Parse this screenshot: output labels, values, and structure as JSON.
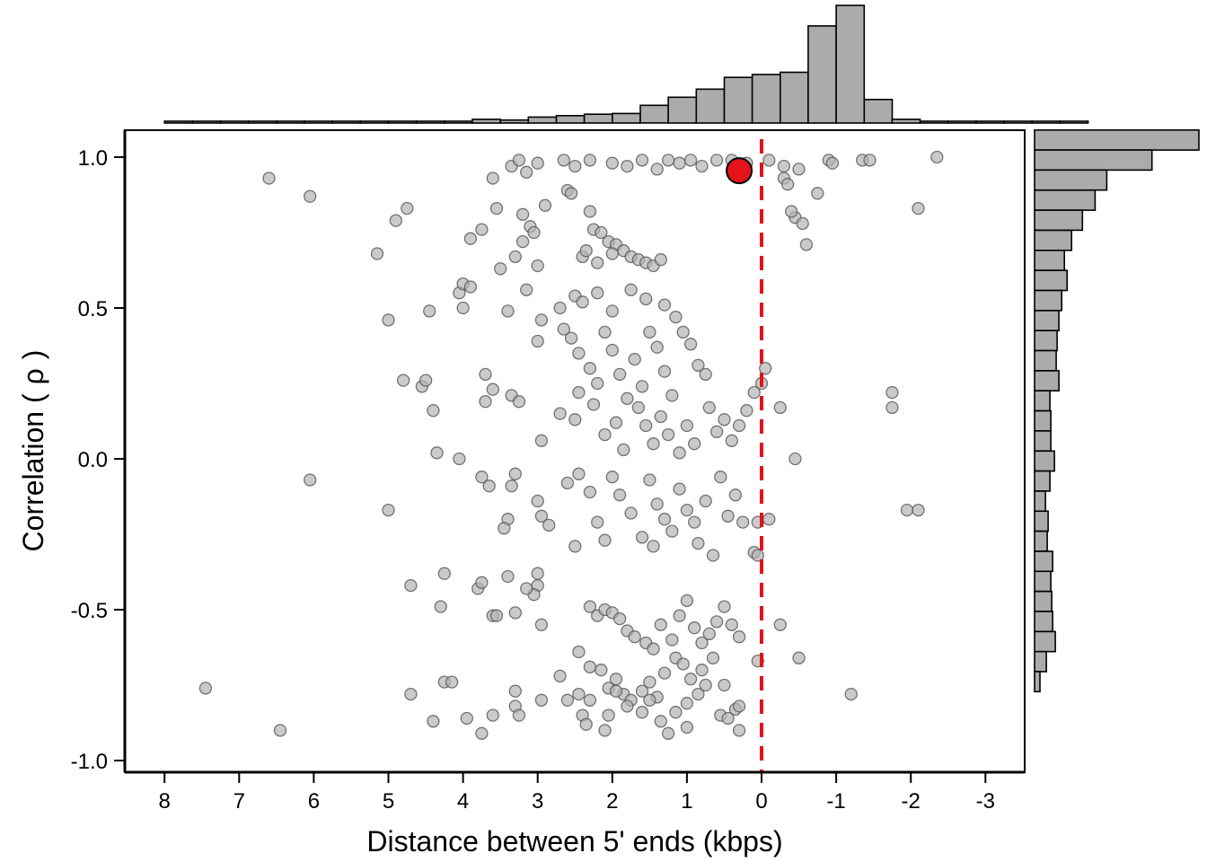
{
  "chart_data": {
    "type": "scatter",
    "title": "",
    "xlabel": "Distance between 5' ends (kbps)",
    "ylabel_text": "Correlation (",
    "ylabel_symbol": "ρ",
    "ylabel_close": ")",
    "x_reversed": true,
    "xlim": [
      8.5,
      -3.5
    ],
    "ylim": [
      -1.04,
      1.09
    ],
    "xticks": [
      8,
      7,
      6,
      5,
      4,
      3,
      2,
      1,
      0,
      -1,
      -2,
      -3
    ],
    "xtick_labels": [
      "8",
      "7",
      "6",
      "5",
      "4",
      "3",
      "2",
      "1",
      "0",
      "-1",
      "-2",
      "-3"
    ],
    "yticks": [
      1.0,
      0.5,
      0.0,
      -0.5,
      -1.0
    ],
    "ytick_labels": [
      "1.0",
      "0.5",
      "0.0",
      "-0.5",
      "-1.0"
    ],
    "grid": false,
    "reference_line": {
      "x": 0,
      "style": "dashed",
      "color": "#e3121b"
    },
    "highlight_point": {
      "x": 0.3,
      "y": 0.955,
      "color": "#e3121b"
    },
    "point_color": "#b3b3b3",
    "bar_color": "#ababab",
    "marginal_x": {
      "bin_width_kbps": 0.375,
      "bin_start": 8.0,
      "counts": [
        1,
        1,
        1,
        1,
        1,
        1,
        1,
        1,
        1,
        2,
        2,
        5,
        4,
        8,
        10,
        12,
        13,
        24,
        35,
        46,
        62,
        66,
        69,
        132,
        160,
        32,
        5,
        2,
        2,
        2,
        1,
        1,
        1
      ]
    },
    "marginal_y": {
      "bin_width": 0.0665,
      "bin_start": 1.09,
      "counts": [
        182,
        130,
        80,
        67,
        53,
        41,
        33,
        36,
        30,
        27,
        25,
        24,
        27,
        17,
        18,
        18,
        22,
        17,
        12,
        15,
        14,
        20,
        18,
        19,
        20,
        23,
        13,
        6
      ]
    },
    "points": [
      [
        6.6,
        0.93
      ],
      [
        6.05,
        0.87
      ],
      [
        5.15,
        0.68
      ],
      [
        4.9,
        0.79
      ],
      [
        4.75,
        0.83
      ],
      [
        3.6,
        0.93
      ],
      [
        3.35,
        0.97
      ],
      [
        3.25,
        0.99
      ],
      [
        3.55,
        0.83
      ],
      [
        3.2,
        0.81
      ],
      [
        3.15,
        0.95
      ],
      [
        3.0,
        0.98
      ],
      [
        2.65,
        0.99
      ],
      [
        2.5,
        0.97
      ],
      [
        2.3,
        0.99
      ],
      [
        2.0,
        0.98
      ],
      [
        1.8,
        0.97
      ],
      [
        1.6,
        0.99
      ],
      [
        1.4,
        0.96
      ],
      [
        1.25,
        0.99
      ],
      [
        1.1,
        0.98
      ],
      [
        0.95,
        0.99
      ],
      [
        0.8,
        0.97
      ],
      [
        0.6,
        0.99
      ],
      [
        0.4,
        0.99
      ],
      [
        0.2,
        0.98
      ],
      [
        -0.1,
        0.99
      ],
      [
        -0.3,
        0.97
      ],
      [
        -0.5,
        0.96
      ],
      [
        -0.75,
        0.88
      ],
      [
        -0.9,
        0.99
      ],
      [
        -0.95,
        0.98
      ],
      [
        -1.35,
        0.99
      ],
      [
        -1.45,
        0.99
      ],
      [
        -2.35,
        1.0
      ],
      [
        -2.1,
        0.83
      ],
      [
        -0.45,
        0.8
      ],
      [
        -0.55,
        0.78
      ],
      [
        -0.6,
        0.71
      ],
      [
        -0.4,
        0.82
      ],
      [
        -0.3,
        0.93
      ],
      [
        -0.35,
        0.91
      ],
      [
        4.05,
        0.55
      ],
      [
        4.0,
        0.58
      ],
      [
        3.9,
        0.57
      ],
      [
        3.5,
        0.63
      ],
      [
        3.3,
        0.67
      ],
      [
        3.0,
        0.64
      ],
      [
        3.1,
        0.77
      ],
      [
        3.05,
        0.75
      ],
      [
        3.9,
        0.73
      ],
      [
        3.75,
        0.76
      ],
      [
        3.2,
        0.72
      ],
      [
        2.9,
        0.84
      ],
      [
        2.6,
        0.89
      ],
      [
        2.55,
        0.88
      ],
      [
        2.3,
        0.82
      ],
      [
        2.25,
        0.76
      ],
      [
        2.15,
        0.75
      ],
      [
        2.05,
        0.72
      ],
      [
        1.95,
        0.71
      ],
      [
        1.85,
        0.69
      ],
      [
        1.75,
        0.67
      ],
      [
        1.65,
        0.66
      ],
      [
        1.55,
        0.65
      ],
      [
        1.45,
        0.64
      ],
      [
        1.35,
        0.66
      ],
      [
        2.4,
        0.67
      ],
      [
        2.35,
        0.69
      ],
      [
        2.2,
        0.65
      ],
      [
        2.0,
        0.68
      ],
      [
        5.0,
        0.46
      ],
      [
        4.45,
        0.49
      ],
      [
        4.0,
        0.5
      ],
      [
        3.4,
        0.49
      ],
      [
        3.15,
        0.56
      ],
      [
        2.95,
        0.46
      ],
      [
        3.0,
        0.39
      ],
      [
        2.7,
        0.5
      ],
      [
        2.65,
        0.43
      ],
      [
        2.55,
        0.4
      ],
      [
        2.45,
        0.35
      ],
      [
        2.3,
        0.3
      ],
      [
        2.2,
        0.25
      ],
      [
        2.1,
        0.42
      ],
      [
        2.0,
        0.36
      ],
      [
        1.9,
        0.28
      ],
      [
        1.8,
        0.2
      ],
      [
        1.7,
        0.33
      ],
      [
        1.6,
        0.24
      ],
      [
        1.5,
        0.42
      ],
      [
        1.4,
        0.37
      ],
      [
        1.3,
        0.29
      ],
      [
        1.2,
        0.21
      ],
      [
        2.5,
        0.54
      ],
      [
        2.4,
        0.52
      ],
      [
        2.2,
        0.55
      ],
      [
        2.0,
        0.49
      ],
      [
        1.75,
        0.56
      ],
      [
        1.55,
        0.53
      ],
      [
        1.3,
        0.51
      ],
      [
        1.15,
        0.47
      ],
      [
        1.05,
        0.42
      ],
      [
        0.95,
        0.38
      ],
      [
        0.85,
        0.31
      ],
      [
        0.75,
        0.28
      ],
      [
        4.8,
        0.26
      ],
      [
        4.55,
        0.24
      ],
      [
        4.5,
        0.26
      ],
      [
        4.4,
        0.16
      ],
      [
        4.35,
        0.02
      ],
      [
        4.05,
        0.0
      ],
      [
        3.7,
        0.28
      ],
      [
        3.6,
        0.23
      ],
      [
        3.7,
        0.19
      ],
      [
        3.35,
        0.21
      ],
      [
        3.25,
        0.19
      ],
      [
        2.95,
        0.06
      ],
      [
        2.7,
        0.15
      ],
      [
        2.45,
        0.22
      ],
      [
        2.5,
        0.13
      ],
      [
        2.25,
        0.18
      ],
      [
        2.1,
        0.08
      ],
      [
        1.95,
        0.12
      ],
      [
        1.85,
        0.03
      ],
      [
        1.65,
        0.17
      ],
      [
        1.55,
        0.11
      ],
      [
        1.45,
        0.05
      ],
      [
        1.35,
        0.14
      ],
      [
        1.25,
        0.08
      ],
      [
        1.1,
        0.02
      ],
      [
        1.0,
        0.11
      ],
      [
        0.9,
        0.05
      ],
      [
        0.7,
        0.17
      ],
      [
        0.6,
        0.09
      ],
      [
        0.5,
        0.13
      ],
      [
        0.4,
        0.06
      ],
      [
        0.3,
        0.11
      ],
      [
        0.2,
        0.16
      ],
      [
        0.1,
        0.22
      ],
      [
        0.0,
        0.25
      ],
      [
        -0.05,
        0.3
      ],
      [
        -0.25,
        0.17
      ],
      [
        -0.45,
        0.0
      ],
      [
        -1.75,
        0.22
      ],
      [
        -1.75,
        0.17
      ],
      [
        6.05,
        -0.07
      ],
      [
        5.0,
        -0.17
      ],
      [
        3.75,
        -0.06
      ],
      [
        3.65,
        -0.09
      ],
      [
        3.35,
        -0.09
      ],
      [
        3.3,
        -0.05
      ],
      [
        3.4,
        -0.2
      ],
      [
        3.45,
        -0.23
      ],
      [
        3.0,
        -0.14
      ],
      [
        2.95,
        -0.19
      ],
      [
        2.85,
        -0.22
      ],
      [
        2.6,
        -0.08
      ],
      [
        2.45,
        -0.05
      ],
      [
        2.3,
        -0.11
      ],
      [
        2.2,
        -0.21
      ],
      [
        2.1,
        -0.27
      ],
      [
        2.0,
        -0.06
      ],
      [
        1.9,
        -0.12
      ],
      [
        1.75,
        -0.18
      ],
      [
        1.6,
        -0.26
      ],
      [
        1.5,
        -0.07
      ],
      [
        1.4,
        -0.15
      ],
      [
        1.3,
        -0.2
      ],
      [
        1.2,
        -0.24
      ],
      [
        1.1,
        -0.1
      ],
      [
        1.0,
        -0.17
      ],
      [
        0.9,
        -0.21
      ],
      [
        0.75,
        -0.14
      ],
      [
        0.55,
        -0.06
      ],
      [
        0.45,
        -0.19
      ],
      [
        0.35,
        -0.12
      ],
      [
        0.25,
        -0.21
      ],
      [
        0.05,
        -0.21
      ],
      [
        -0.1,
        -0.2
      ],
      [
        -1.95,
        -0.17
      ],
      [
        -2.1,
        -0.17
      ],
      [
        2.5,
        -0.29
      ],
      [
        1.45,
        -0.29
      ],
      [
        0.85,
        -0.28
      ],
      [
        0.65,
        -0.32
      ],
      [
        0.1,
        -0.31
      ],
      [
        0.05,
        -0.32
      ],
      [
        4.25,
        -0.38
      ],
      [
        4.3,
        -0.49
      ],
      [
        4.7,
        -0.42
      ],
      [
        3.8,
        -0.43
      ],
      [
        3.75,
        -0.41
      ],
      [
        3.4,
        -0.39
      ],
      [
        3.0,
        -0.38
      ],
      [
        3.0,
        -0.42
      ],
      [
        3.05,
        -0.45
      ],
      [
        3.15,
        -0.43
      ],
      [
        3.3,
        -0.51
      ],
      [
        3.6,
        -0.52
      ],
      [
        3.55,
        -0.52
      ],
      [
        2.95,
        -0.55
      ],
      [
        2.3,
        -0.49
      ],
      [
        2.2,
        -0.52
      ],
      [
        2.1,
        -0.5
      ],
      [
        2.0,
        -0.51
      ],
      [
        1.9,
        -0.53
      ],
      [
        1.8,
        -0.57
      ],
      [
        1.7,
        -0.59
      ],
      [
        1.55,
        -0.61
      ],
      [
        1.45,
        -0.63
      ],
      [
        1.35,
        -0.55
      ],
      [
        1.2,
        -0.6
      ],
      [
        1.1,
        -0.52
      ],
      [
        1.0,
        -0.47
      ],
      [
        0.9,
        -0.56
      ],
      [
        0.8,
        -0.61
      ],
      [
        0.7,
        -0.58
      ],
      [
        0.6,
        -0.54
      ],
      [
        0.5,
        -0.49
      ],
      [
        0.4,
        -0.55
      ],
      [
        0.3,
        -0.59
      ],
      [
        -0.25,
        -0.55
      ],
      [
        2.45,
        -0.64
      ],
      [
        2.3,
        -0.69
      ],
      [
        2.15,
        -0.7
      ],
      [
        2.05,
        -0.76
      ],
      [
        1.95,
        -0.73
      ],
      [
        1.85,
        -0.78
      ],
      [
        1.75,
        -0.8
      ],
      [
        1.6,
        -0.77
      ],
      [
        1.5,
        -0.74
      ],
      [
        1.4,
        -0.79
      ],
      [
        1.3,
        -0.71
      ],
      [
        1.15,
        -0.66
      ],
      [
        1.05,
        -0.68
      ],
      [
        0.95,
        -0.73
      ],
      [
        0.8,
        -0.7
      ],
      [
        0.65,
        -0.66
      ],
      [
        0.5,
        -0.75
      ],
      [
        0.35,
        -0.83
      ],
      [
        0.05,
        -0.67
      ],
      [
        -0.5,
        -0.66
      ],
      [
        7.45,
        -0.76
      ],
      [
        6.45,
        -0.9
      ],
      [
        4.7,
        -0.78
      ],
      [
        4.25,
        -0.74
      ],
      [
        4.15,
        -0.74
      ],
      [
        4.4,
        -0.87
      ],
      [
        3.95,
        -0.86
      ],
      [
        3.75,
        -0.91
      ],
      [
        3.6,
        -0.85
      ],
      [
        3.3,
        -0.77
      ],
      [
        3.3,
        -0.82
      ],
      [
        3.25,
        -0.85
      ],
      [
        2.95,
        -0.8
      ],
      [
        2.7,
        -0.72
      ],
      [
        2.6,
        -0.8
      ],
      [
        2.45,
        -0.78
      ],
      [
        2.4,
        -0.85
      ],
      [
        2.35,
        -0.88
      ],
      [
        2.3,
        -0.8
      ],
      [
        2.1,
        -0.9
      ],
      [
        2.05,
        -0.85
      ],
      [
        1.95,
        -0.77
      ],
      [
        1.8,
        -0.82
      ],
      [
        1.6,
        -0.84
      ],
      [
        1.5,
        -0.8
      ],
      [
        1.35,
        -0.87
      ],
      [
        1.25,
        -0.91
      ],
      [
        1.15,
        -0.84
      ],
      [
        1.0,
        -0.81
      ],
      [
        0.85,
        -0.78
      ],
      [
        0.75,
        -0.75
      ],
      [
        0.55,
        -0.85
      ],
      [
        0.45,
        -0.86
      ],
      [
        0.3,
        -0.9
      ],
      [
        0.3,
        -0.82
      ],
      [
        1.0,
        -0.89
      ],
      [
        -1.2,
        -0.78
      ]
    ]
  }
}
